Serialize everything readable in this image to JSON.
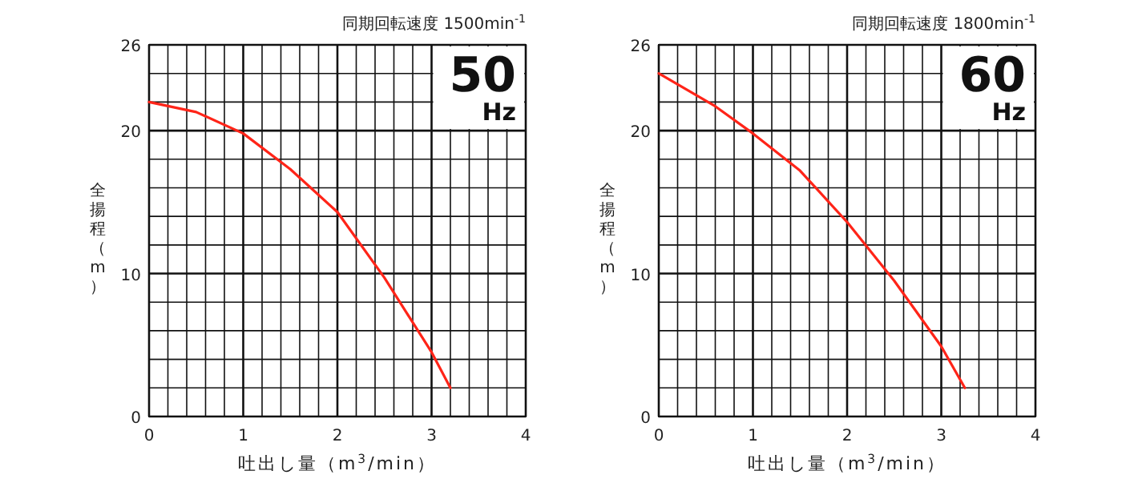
{
  "chart_data": [
    {
      "type": "line",
      "title": "同期回転速度 1500min$^{-1}$",
      "annotations": [
        "50",
        "Hz"
      ],
      "xlabel": "吐出し量（m$^{3}$/min）",
      "ylabel": "全揚程（m）",
      "x": [
        0,
        0.5,
        1,
        1.5,
        2,
        2.5,
        3,
        3.2
      ],
      "series": [
        {
          "color": "#ff2418",
          "values": [
            22,
            21.3,
            19.8,
            17.3,
            14.3,
            9.7,
            4.5,
            2
          ]
        }
      ],
      "xlim": [
        0,
        4
      ],
      "ylim": [
        0,
        26
      ],
      "xticks": [
        0,
        {
          "value": 0.2,
          "label": null
        },
        {
          "value": 0.4,
          "label": null
        },
        {
          "value": 0.6,
          "label": null
        },
        {
          "value": 0.8,
          "label": null
        },
        1,
        {
          "value": 1.2,
          "label": null
        },
        {
          "value": 1.4,
          "label": null
        },
        {
          "value": 1.6,
          "label": null
        },
        {
          "value": 1.8,
          "label": null
        },
        2,
        {
          "value": 2.2,
          "label": null
        },
        {
          "value": 2.4,
          "label": null
        },
        {
          "value": 2.6,
          "label": null
        },
        {
          "value": 2.8,
          "label": null
        },
        3,
        {
          "value": 3.2,
          "label": null
        },
        {
          "value": 3.4,
          "label": null
        },
        {
          "value": 3.6,
          "label": null
        },
        {
          "value": 3.8,
          "label": null
        },
        4
      ],
      "yticks": [
        0,
        {
          "value": 2,
          "label": null
        },
        {
          "value": 4,
          "label": null
        },
        {
          "value": 6,
          "label": null
        },
        {
          "value": 8,
          "label": null
        },
        10,
        {
          "value": 12,
          "label": null
        },
        {
          "value": 14,
          "label": null
        },
        {
          "value": 16,
          "label": null
        },
        {
          "value": 18,
          "label": null
        },
        20,
        {
          "value": 22,
          "label": null
        },
        {
          "value": 24,
          "label": null
        },
        26
      ],
      "grid": true
    },
    {
      "type": "line",
      "title": "同期回転速度 1800min$^{-1}$",
      "annotations": [
        "60",
        "Hz"
      ],
      "xlabel": "吐出し量（m$^{3}$/min）",
      "ylabel": "全揚程（m）",
      "x": [
        0,
        0.6,
        1,
        1.5,
        2,
        2.5,
        3,
        3.25
      ],
      "series": [
        {
          "color": "#ff2418",
          "values": [
            24,
            21.7,
            19.8,
            17.2,
            13.6,
            9.5,
            4.9,
            2
          ]
        }
      ],
      "xlim": [
        0,
        4
      ],
      "ylim": [
        0,
        26
      ],
      "xticks": [
        0,
        {
          "value": 0.2,
          "label": null
        },
        {
          "value": 0.4,
          "label": null
        },
        {
          "value": 0.6,
          "label": null
        },
        {
          "value": 0.8,
          "label": null
        },
        1,
        {
          "value": 1.2,
          "label": null
        },
        {
          "value": 1.4,
          "label": null
        },
        {
          "value": 1.6,
          "label": null
        },
        {
          "value": 1.8,
          "label": null
        },
        2,
        {
          "value": 2.2,
          "label": null
        },
        {
          "value": 2.4,
          "label": null
        },
        {
          "value": 2.6,
          "label": null
        },
        {
          "value": 2.8,
          "label": null
        },
        3,
        {
          "value": 3.2,
          "label": null
        },
        {
          "value": 3.4,
          "label": null
        },
        {
          "value": 3.6,
          "label": null
        },
        {
          "value": 3.8,
          "label": null
        },
        4
      ],
      "yticks": [
        0,
        {
          "value": 2,
          "label": null
        },
        {
          "value": 4,
          "label": null
        },
        {
          "value": 6,
          "label": null
        },
        {
          "value": 8,
          "label": null
        },
        10,
        {
          "value": 12,
          "label": null
        },
        {
          "value": 14,
          "label": null
        },
        {
          "value": 16,
          "label": null
        },
        {
          "value": 18,
          "label": null
        },
        20,
        {
          "value": 22,
          "label": null
        },
        {
          "value": 24,
          "label": null
        },
        26
      ],
      "grid": true
    }
  ]
}
